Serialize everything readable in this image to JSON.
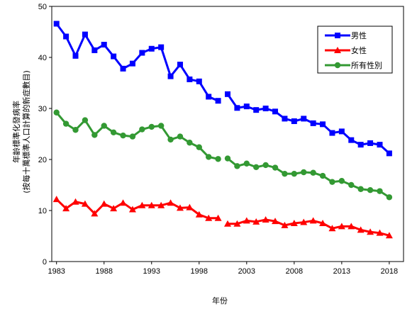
{
  "chart_data": {
    "type": "line",
    "xlabel": "年份",
    "ylabel_line1": "年齡標準化發病率",
    "ylabel_line2": "(按每十萬標準人口計算的新症數目)",
    "ylim": [
      0,
      50
    ],
    "yticks": [
      0,
      10,
      20,
      30,
      40,
      50
    ],
    "xlim": [
      1982.5,
      2019.5
    ],
    "xticks": [
      1983,
      1988,
      1993,
      1998,
      2003,
      2008,
      2013,
      2018
    ],
    "grid": false,
    "legend_position": "top-right",
    "gap_between": [
      2000,
      2001
    ],
    "x": [
      1983,
      1984,
      1985,
      1986,
      1987,
      1988,
      1989,
      1990,
      1991,
      1992,
      1993,
      1994,
      1995,
      1996,
      1997,
      1998,
      1999,
      2000,
      2001,
      2002,
      2003,
      2004,
      2005,
      2006,
      2007,
      2008,
      2009,
      2010,
      2011,
      2012,
      2013,
      2014,
      2015,
      2016,
      2017,
      2018
    ],
    "series": [
      {
        "name": "男性",
        "color": "#0000FF",
        "marker": "square",
        "values": [
          46.6,
          44.1,
          40.3,
          44.5,
          41.4,
          42.5,
          40.2,
          37.8,
          38.8,
          40.9,
          41.7,
          42.0,
          36.3,
          38.6,
          35.7,
          35.3,
          32.3,
          31.5,
          32.8,
          30.1,
          30.4,
          29.7,
          30.0,
          29.4,
          28.0,
          27.5,
          28.0,
          27.1,
          26.9,
          25.2,
          25.5,
          23.8,
          22.9,
          23.2,
          22.9,
          21.2
        ]
      },
      {
        "name": "女性",
        "color": "#FF0000",
        "marker": "triangle",
        "values": [
          12.2,
          10.4,
          11.7,
          11.3,
          9.4,
          11.3,
          10.4,
          11.5,
          10.2,
          11.0,
          11.0,
          11.0,
          11.5,
          10.5,
          10.6,
          9.2,
          8.5,
          8.5,
          7.4,
          7.4,
          8.0,
          7.8,
          8.2,
          7.9,
          7.1,
          7.5,
          7.7,
          8.0,
          7.5,
          6.5,
          6.9,
          6.9,
          6.2,
          5.8,
          5.6,
          5.1
        ]
      },
      {
        "name": "所有性別",
        "color": "#339933",
        "marker": "circle",
        "values": [
          29.2,
          27.0,
          25.8,
          27.7,
          24.8,
          26.6,
          25.3,
          24.7,
          24.5,
          25.9,
          26.4,
          26.6,
          23.9,
          24.5,
          23.3,
          22.4,
          20.5,
          20.1,
          20.2,
          18.7,
          19.2,
          18.5,
          18.9,
          18.4,
          17.2,
          17.2,
          17.5,
          17.4,
          16.8,
          15.6,
          15.8,
          15.0,
          14.2,
          14.0,
          13.8,
          12.6
        ]
      }
    ]
  }
}
